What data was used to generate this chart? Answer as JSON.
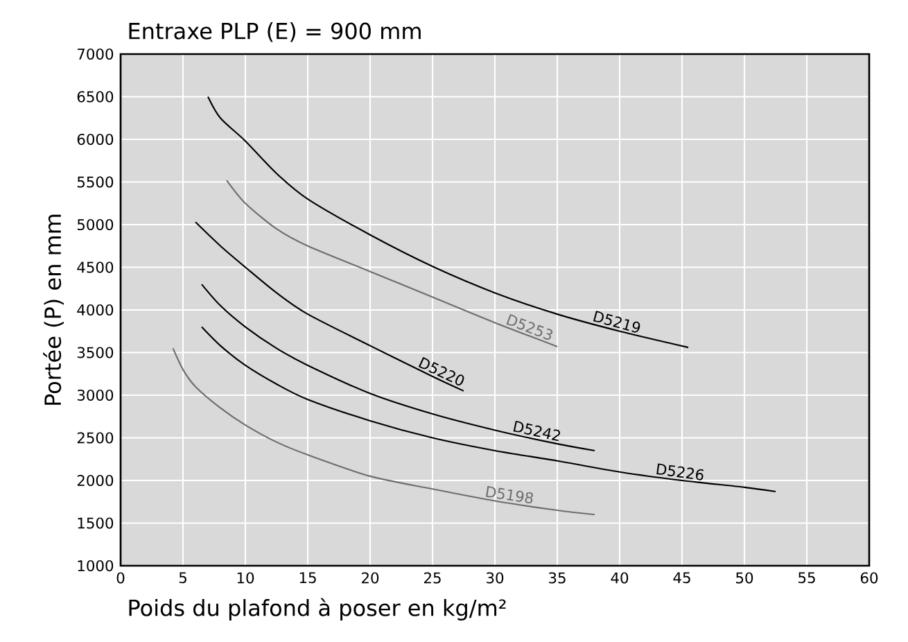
{
  "chart_data": {
    "type": "line",
    "title": "Entraxe PLP (E) = 900 mm",
    "xlabel": "Poids du plafond à poser en kg/m²",
    "ylabel": "Portée (P) en mm",
    "xlim": [
      0,
      60
    ],
    "ylim": [
      1000,
      7000
    ],
    "xticks": [
      0,
      5,
      10,
      15,
      20,
      25,
      30,
      35,
      40,
      45,
      50,
      55,
      60
    ],
    "yticks": [
      1000,
      1500,
      2000,
      2500,
      3000,
      3500,
      4000,
      4500,
      5000,
      5500,
      6000,
      6500,
      7000
    ],
    "grid": true,
    "marker": "none",
    "line_style": "solid",
    "series": [
      {
        "name": "D5219",
        "color": "#000000",
        "x": [
          7,
          8,
          10,
          12.5,
          15,
          20,
          25,
          30,
          35,
          40,
          45.5
        ],
        "values": [
          6500,
          6250,
          5980,
          5600,
          5300,
          4880,
          4510,
          4200,
          3950,
          3750,
          3560
        ]
      },
      {
        "name": "D5253",
        "color": "#6e6e6e",
        "x": [
          8.5,
          10,
          12.5,
          15,
          20,
          25,
          30,
          35
        ],
        "values": [
          5520,
          5250,
          4950,
          4750,
          4450,
          4150,
          3850,
          3570
        ]
      },
      {
        "name": "D5220",
        "color": "#000000",
        "x": [
          6,
          8,
          10,
          12.5,
          15,
          20,
          25,
          27.5
        ],
        "values": [
          5030,
          4750,
          4500,
          4200,
          3950,
          3580,
          3220,
          3050
        ]
      },
      {
        "name": "D5242",
        "color": "#000000",
        "x": [
          6.5,
          8,
          10,
          12.5,
          15,
          20,
          25,
          30,
          35,
          38
        ],
        "values": [
          4300,
          4050,
          3800,
          3550,
          3350,
          3020,
          2780,
          2590,
          2430,
          2350
        ]
      },
      {
        "name": "D5226",
        "color": "#000000",
        "x": [
          6.5,
          8,
          10,
          12.5,
          15,
          20,
          25,
          30,
          35,
          40,
          45,
          50,
          52.5
        ],
        "values": [
          3800,
          3580,
          3350,
          3130,
          2950,
          2700,
          2500,
          2350,
          2230,
          2100,
          2000,
          1920,
          1870
        ]
      },
      {
        "name": "D5198",
        "color": "#6e6e6e",
        "x": [
          4.2,
          5,
          6,
          8,
          10,
          12.5,
          15,
          20,
          25,
          30,
          35,
          38
        ],
        "values": [
          3550,
          3300,
          3100,
          2850,
          2650,
          2450,
          2300,
          2050,
          1900,
          1760,
          1650,
          1600
        ]
      }
    ]
  }
}
